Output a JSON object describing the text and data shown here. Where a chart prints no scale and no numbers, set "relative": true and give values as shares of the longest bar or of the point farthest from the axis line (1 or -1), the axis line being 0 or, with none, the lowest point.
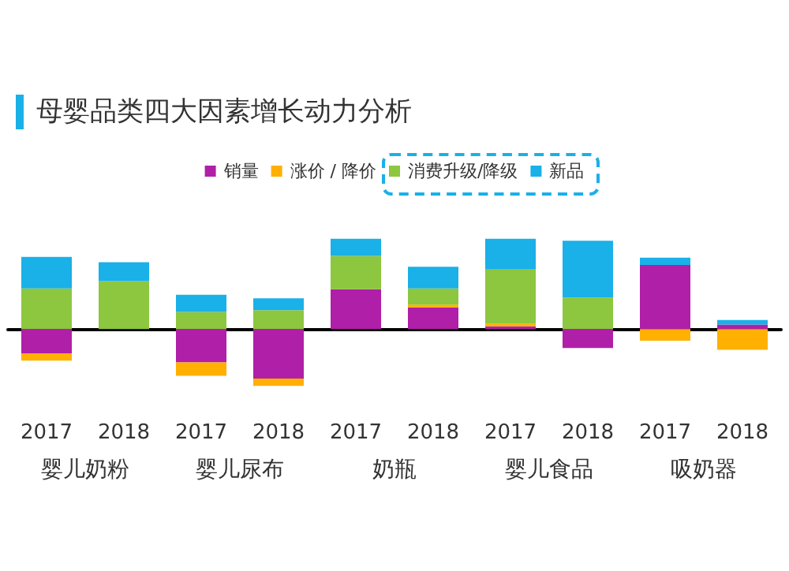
{
  "chart_data": {
    "type": "bar",
    "title": "母婴品类四大因素增长动力分析",
    "relative": true,
    "stacked": true,
    "legend": "top",
    "categories": [
      "2017",
      "2018",
      "2017",
      "2018",
      "2017",
      "2018",
      "2017",
      "2018",
      "2017",
      "2018"
    ],
    "annotations": [
      "婴儿奶粉",
      "婴儿尿布",
      "奶瓶",
      "婴儿食品",
      "吸奶器"
    ],
    "series": [
      {
        "name": "销量",
        "color": "#b01fa8",
        "values": [
          -0.27,
          0,
          -0.37,
          -0.55,
          0.44,
          0.24,
          0.03,
          -0.21,
          0.71,
          0.05
        ]
      },
      {
        "name": "涨价 / 降价",
        "color": "#ffb000",
        "values": [
          -0.08,
          0,
          -0.15,
          -0.08,
          0,
          0.03,
          0.03,
          0,
          -0.13,
          -0.23
        ]
      },
      {
        "name": "消费升级/降级",
        "color": "#8dc63f",
        "values": [
          0.45,
          0.53,
          0.19,
          0.21,
          0.37,
          0.18,
          0.6,
          0.35,
          0,
          0
        ]
      },
      {
        "name": "新品",
        "color": "#1ab0e8",
        "values": [
          0.35,
          0.21,
          0.19,
          0.13,
          0.19,
          0.24,
          0.34,
          0.63,
          0.08,
          0.05
        ]
      }
    ]
  }
}
